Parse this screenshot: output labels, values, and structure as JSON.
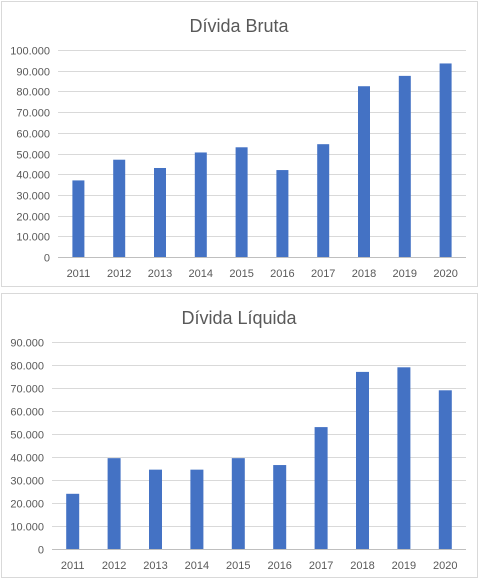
{
  "chart_data": [
    {
      "type": "bar",
      "title": "Dívida Bruta",
      "xlabel": "",
      "ylabel": "",
      "categories": [
        "2011",
        "2012",
        "2013",
        "2014",
        "2015",
        "2016",
        "2017",
        "2018",
        "2019",
        "2020"
      ],
      "values": [
        37000,
        47000,
        43000,
        50500,
        53000,
        42000,
        54500,
        82500,
        87500,
        93500
      ],
      "ylim": [
        0,
        100000
      ],
      "yticks": [
        "0",
        "10.000",
        "20.000",
        "30.000",
        "40.000",
        "50.000",
        "60.000",
        "70.000",
        "80.000",
        "90.000",
        "100.000"
      ],
      "grid": true,
      "bar_color": "#4472C4"
    },
    {
      "type": "bar",
      "title": "Dívida Líquida",
      "xlabel": "",
      "ylabel": "",
      "categories": [
        "2011",
        "2012",
        "2013",
        "2014",
        "2015",
        "2016",
        "2017",
        "2018",
        "2019",
        "2020"
      ],
      "values": [
        24000,
        39500,
        34500,
        34500,
        39500,
        36500,
        53000,
        77000,
        79000,
        69000
      ],
      "ylim": [
        0,
        90000
      ],
      "yticks": [
        "0",
        "10.000",
        "20.000",
        "30.000",
        "40.000",
        "50.000",
        "60.000",
        "70.000",
        "80.000",
        "90.000"
      ],
      "grid": true,
      "bar_color": "#4472C4"
    }
  ]
}
